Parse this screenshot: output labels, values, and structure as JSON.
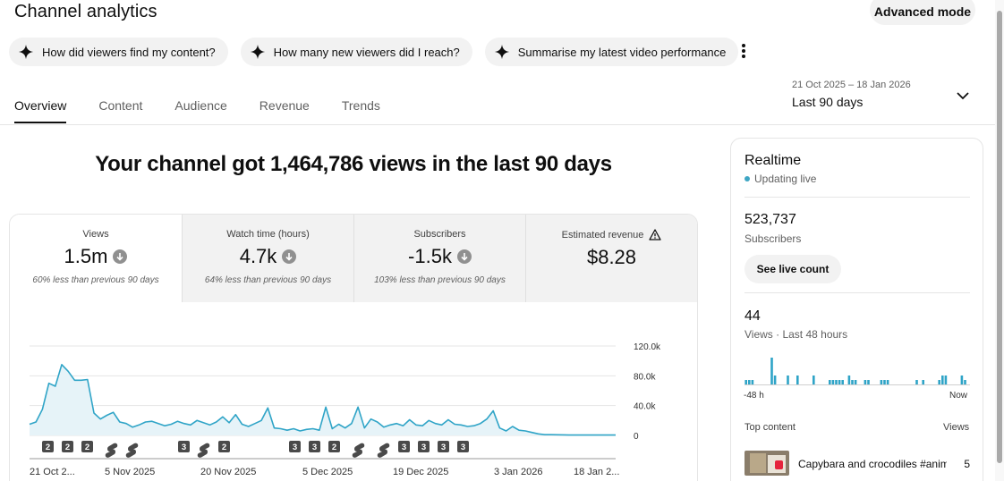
{
  "header": {
    "title": "Channel analytics",
    "advanced_mode": "Advanced mode"
  },
  "chips": [
    {
      "label": "How did viewers find my content?",
      "icon": "sparkle-icon"
    },
    {
      "label": "How many new viewers did I reach?",
      "icon": "sparkle-icon"
    },
    {
      "label": "Summarise my latest video performance",
      "icon": "sparkle-icon"
    }
  ],
  "tabs": [
    {
      "label": "Overview",
      "active": true
    },
    {
      "label": "Content"
    },
    {
      "label": "Audience"
    },
    {
      "label": "Revenue"
    },
    {
      "label": "Trends"
    }
  ],
  "date_range": {
    "dates": "21 Oct 2025 – 18 Jan 2026",
    "label": "Last 90 days"
  },
  "headline": "Your channel got 1,464,786 views in the last 90 days",
  "metrics": [
    {
      "label": "Views",
      "value": "1.5m",
      "note": "60% less than previous 90 days",
      "trend": "down"
    },
    {
      "label": "Watch time (hours)",
      "value": "4.7k",
      "note": "64% less than previous 90 days",
      "trend": "down"
    },
    {
      "label": "Subscribers",
      "value": "-1.5k",
      "note": "103% less than previous 90 days",
      "trend": "down"
    },
    {
      "label": "Estimated revenue",
      "value": "$8.28",
      "icon": "warning-icon"
    }
  ],
  "chart_data": {
    "type": "area",
    "x_tick_labels": [
      "21 Oct 2...",
      "5 Nov 2025",
      "20 Nov 2025",
      "5 Dec 2025",
      "19 Dec 2025",
      "3 Jan 2026",
      "18 Jan 2..."
    ],
    "y_tick_labels": [
      "0",
      "40.0k",
      "80.0k",
      "120.0k"
    ],
    "ylim": [
      0,
      120000
    ],
    "grid": true,
    "line_color": "#2fa4c7",
    "fill_color": "#e6f3f8",
    "series": [
      {
        "values": [
          15000,
          18000,
          35000,
          70000,
          66000,
          95000,
          86000,
          74000,
          74000,
          75000,
          30000,
          22000,
          27000,
          31000,
          18000,
          16000,
          11000,
          14000,
          18000,
          19000,
          16000,
          13000,
          15000,
          19000,
          16000,
          14000,
          20000,
          17000,
          14000,
          18000,
          25000,
          17000,
          28000,
          15000,
          12000,
          16000,
          20000,
          37000,
          10000,
          9000,
          7000,
          9000,
          6000,
          8000,
          9000,
          7000,
          38000,
          9000,
          15000,
          10000,
          16000,
          38000,
          10000,
          22000,
          18000,
          11000,
          14000,
          16000,
          13000,
          21000,
          14000,
          13000,
          20000,
          16000,
          14000,
          21000,
          15000,
          14000,
          12000,
          13000,
          16000,
          22000,
          33000,
          10000,
          6000,
          12000,
          7000,
          6000,
          4000,
          2000,
          1000,
          1000,
          800,
          700,
          500,
          500,
          500,
          500,
          500,
          500,
          500,
          500
        ]
      }
    ],
    "markers": [
      {
        "label": "2",
        "kind": "count"
      },
      {
        "label": "2",
        "kind": "count"
      },
      {
        "label": "2",
        "kind": "count"
      },
      {
        "label": "",
        "kind": "shorts"
      },
      {
        "label": "",
        "kind": "shorts"
      },
      {
        "label": "3",
        "kind": "count"
      },
      {
        "label": "",
        "kind": "shorts"
      },
      {
        "label": "2",
        "kind": "count"
      },
      {
        "label": "3",
        "kind": "count"
      },
      {
        "label": "3",
        "kind": "count"
      },
      {
        "label": "2",
        "kind": "count"
      },
      {
        "label": "",
        "kind": "shorts"
      },
      {
        "label": "",
        "kind": "shorts"
      },
      {
        "label": "3",
        "kind": "count"
      },
      {
        "label": "3",
        "kind": "count"
      },
      {
        "label": "3",
        "kind": "count"
      },
      {
        "label": "3",
        "kind": "count"
      }
    ]
  },
  "realtime": {
    "title": "Realtime",
    "status": "Updating live",
    "subscribers_value": "523,737",
    "subscribers_label": "Subscribers",
    "live_button": "See live count",
    "views_value": "44",
    "views_label": "Views · Last 48 hours",
    "axis_start": "-48 h",
    "axis_end": "Now",
    "hourly_views": [
      1,
      1,
      1,
      0,
      0,
      0,
      0,
      0,
      6,
      2,
      0,
      0,
      0,
      2,
      0,
      0,
      2,
      0,
      0,
      0,
      0,
      2,
      0,
      0,
      0,
      0,
      1,
      1,
      1,
      1,
      1,
      0,
      2,
      1,
      1,
      0,
      0,
      1,
      1,
      0,
      0,
      0,
      1,
      1,
      1,
      0,
      0,
      0,
      0,
      0,
      0,
      0,
      0,
      1,
      0,
      1,
      0,
      0,
      0,
      0,
      1,
      2,
      2,
      0,
      0,
      0,
      0,
      2,
      1,
      0
    ],
    "top_content_header": "Top content",
    "views_header": "Views",
    "top_content": [
      {
        "title": "Capybara and crocodiles #animals #shorts",
        "views": "5"
      }
    ]
  },
  "colors": {
    "accent": "#2fa4c7",
    "chip_bg": "#f2f2f2"
  }
}
